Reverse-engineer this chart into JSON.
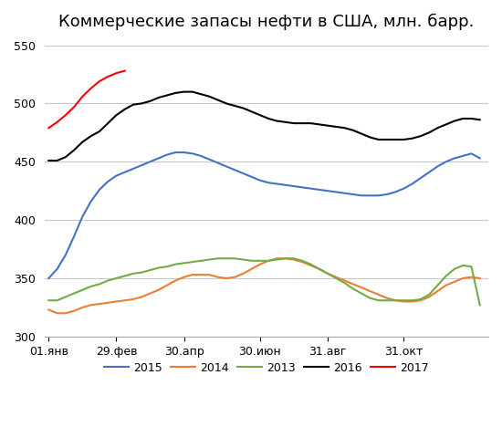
{
  "title": "Коммерческие запасы нефти в США, млн. барр.",
  "ylim": [
    300,
    555
  ],
  "yticks": [
    300,
    350,
    400,
    450,
    500,
    550
  ],
  "xtick_labels": [
    "01.янв",
    "29.фев",
    "30.апр",
    "30.июн",
    "31.авг",
    "31.окт"
  ],
  "xtick_positions": [
    0,
    8,
    16,
    25,
    33,
    42
  ],
  "xlim": [
    -0.5,
    52
  ],
  "legend_labels": [
    "2015",
    "2014",
    "2013",
    "2016",
    "2017"
  ],
  "colors": {
    "2015": "#4472C4",
    "2014": "#ED7D31",
    "2013": "#70AD47",
    "2016": "#000000",
    "2017": "#FF0000"
  },
  "series": {
    "2016": [
      451,
      451,
      454,
      460,
      467,
      472,
      476,
      483,
      490,
      495,
      499,
      500,
      502,
      505,
      507,
      509,
      510,
      510,
      508,
      506,
      503,
      500,
      498,
      496,
      493,
      490,
      487,
      485,
      484,
      483,
      483,
      483,
      482,
      481,
      480,
      479,
      477,
      474,
      471,
      469,
      469,
      469,
      469,
      470,
      472,
      475,
      479,
      482,
      485,
      487,
      487,
      486
    ],
    "2015": [
      350,
      358,
      370,
      386,
      403,
      416,
      426,
      433,
      438,
      441,
      444,
      447,
      450,
      453,
      456,
      458,
      458,
      457,
      455,
      452,
      449,
      446,
      443,
      440,
      437,
      434,
      432,
      431,
      430,
      429,
      428,
      427,
      426,
      425,
      424,
      423,
      422,
      421,
      421,
      421,
      422,
      424,
      427,
      431,
      436,
      441,
      446,
      450,
      453,
      455,
      457,
      453
    ],
    "2014": [
      323,
      320,
      320,
      322,
      325,
      327,
      328,
      329,
      330,
      331,
      332,
      334,
      337,
      340,
      344,
      348,
      351,
      353,
      353,
      353,
      351,
      350,
      351,
      354,
      358,
      362,
      365,
      367,
      367,
      366,
      364,
      361,
      358,
      354,
      351,
      348,
      345,
      342,
      339,
      336,
      333,
      331,
      330,
      330,
      331,
      334,
      339,
      344,
      347,
      350,
      351,
      350
    ],
    "2013": [
      331,
      331,
      334,
      337,
      340,
      343,
      345,
      348,
      350,
      352,
      354,
      355,
      357,
      359,
      360,
      362,
      363,
      364,
      365,
      366,
      367,
      367,
      367,
      366,
      365,
      365,
      365,
      366,
      367,
      367,
      365,
      362,
      358,
      354,
      350,
      346,
      341,
      337,
      333,
      331,
      331,
      331,
      331,
      331,
      332,
      336,
      344,
      352,
      358,
      361,
      360,
      327
    ],
    "2017": [
      479,
      484,
      490,
      497,
      506,
      513,
      519,
      523,
      526,
      528
    ]
  },
  "background_color": "#ffffff",
  "grid_color": "#c8c8c8",
  "title_fontsize": 13,
  "tick_fontsize": 9,
  "legend_fontsize": 9
}
